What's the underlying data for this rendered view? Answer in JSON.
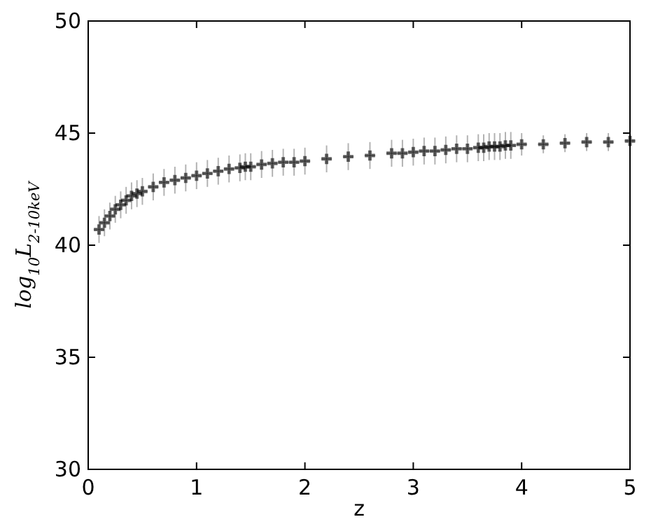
{
  "chart_data": {
    "type": "scatter",
    "xlabel": "z",
    "ylabel": "log$_{10}$L$_{2-10keV}$",
    "marker": "cross",
    "grid": false,
    "xlim": [
      0,
      5
    ],
    "ylim": [
      30,
      50
    ],
    "xticks": [
      0,
      1,
      2,
      3,
      4,
      5
    ],
    "yticks": [
      30,
      35,
      40,
      45,
      50
    ],
    "series": [
      {
        "color": "#000000",
        "x": [
          0.1,
          0.15,
          0.2,
          0.25,
          0.3,
          0.35,
          0.4,
          0.45,
          0.5,
          0.6,
          0.7,
          0.8,
          0.9,
          1.0,
          1.1,
          1.2,
          1.3,
          1.4,
          1.45,
          1.5,
          1.6,
          1.7,
          1.8,
          1.9,
          2.0,
          2.2,
          2.4,
          2.6,
          2.8,
          2.9,
          3.0,
          3.1,
          3.2,
          3.3,
          3.4,
          3.5,
          3.6,
          3.65,
          3.7,
          3.75,
          3.8,
          3.85,
          3.9,
          4.0,
          4.2,
          4.4,
          4.6,
          4.8,
          5.0
        ],
        "values": [
          40.7,
          41.0,
          41.3,
          41.6,
          41.8,
          42.0,
          42.2,
          42.3,
          42.4,
          42.6,
          42.8,
          42.9,
          43.0,
          43.1,
          43.2,
          43.3,
          43.4,
          43.45,
          43.5,
          43.5,
          43.6,
          43.65,
          43.7,
          43.7,
          43.75,
          43.85,
          43.95,
          44.0,
          44.1,
          44.1,
          44.15,
          44.2,
          44.2,
          44.25,
          44.3,
          44.3,
          44.35,
          44.35,
          44.4,
          44.4,
          44.4,
          44.45,
          44.45,
          44.5,
          44.5,
          44.55,
          44.6,
          44.6,
          44.65
        ],
        "errors": [
          0.6,
          0.6,
          0.6,
          0.6,
          0.6,
          0.6,
          0.6,
          0.6,
          0.6,
          0.6,
          0.6,
          0.6,
          0.6,
          0.6,
          0.6,
          0.6,
          0.6,
          0.6,
          0.6,
          0.6,
          0.6,
          0.6,
          0.6,
          0.6,
          0.6,
          0.6,
          0.6,
          0.6,
          0.6,
          0.6,
          0.6,
          0.6,
          0.6,
          0.6,
          0.6,
          0.6,
          0.6,
          0.6,
          0.6,
          0.6,
          0.6,
          0.6,
          0.6,
          0.5,
          0.4,
          0.4,
          0.4,
          0.4,
          0.4
        ],
        "xerrors": [
          0.05,
          0.05,
          0.05,
          0.05,
          0.05,
          0.05,
          0.05,
          0.05,
          0.05,
          0.05,
          0.05,
          0.05,
          0.05,
          0.05,
          0.05,
          0.05,
          0.05,
          0.05,
          0.05,
          0.05,
          0.05,
          0.05,
          0.05,
          0.05,
          0.05,
          0.05,
          0.05,
          0.05,
          0.05,
          0.05,
          0.05,
          0.05,
          0.05,
          0.05,
          0.05,
          0.05,
          0.05,
          0.05,
          0.05,
          0.05,
          0.05,
          0.05,
          0.05,
          0.05,
          0.05,
          0.05,
          0.05,
          0.05,
          0.05
        ]
      }
    ]
  }
}
